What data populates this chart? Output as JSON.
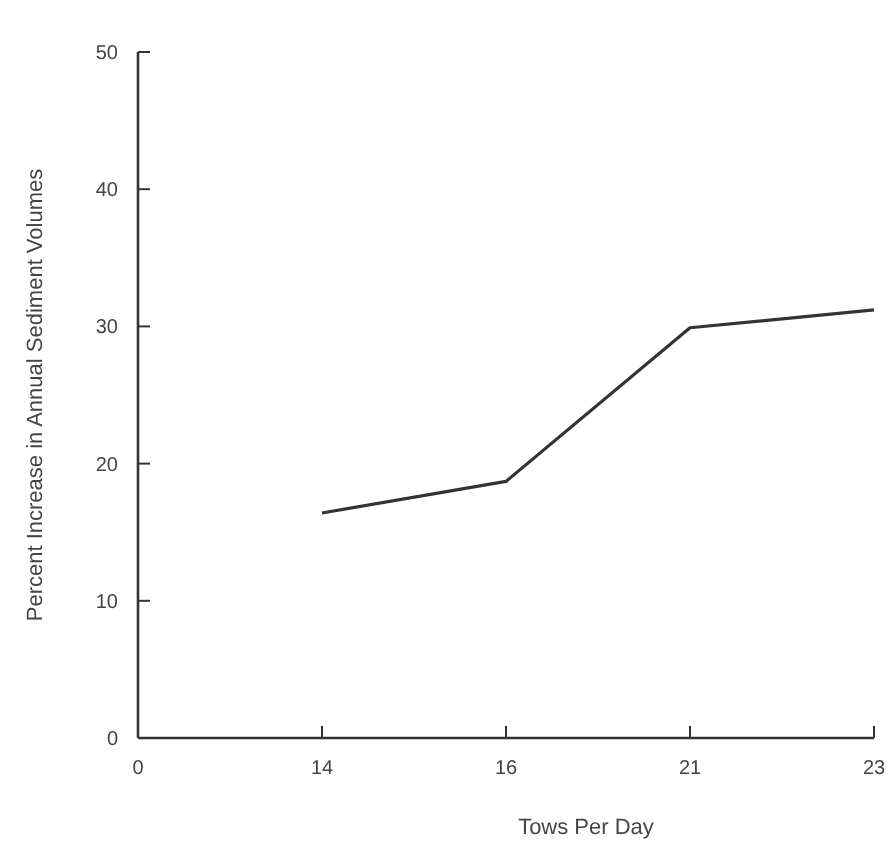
{
  "chart_data": {
    "type": "line",
    "xlabel": "Tows Per Day",
    "ylabel": "Percent Increase in Annual Sediment Volumes",
    "categories": [
      "0",
      "14",
      "16",
      "21",
      "23"
    ],
    "series": [
      {
        "color": "#333333",
        "values": [
          null,
          16.4,
          18.7,
          29.9,
          31.2
        ]
      }
    ],
    "ylim": [
      0,
      50
    ],
    "yticks": [
      0,
      10,
      20,
      30,
      40,
      50
    ],
    "grid": false,
    "marker": "none",
    "line_style": "solid"
  }
}
